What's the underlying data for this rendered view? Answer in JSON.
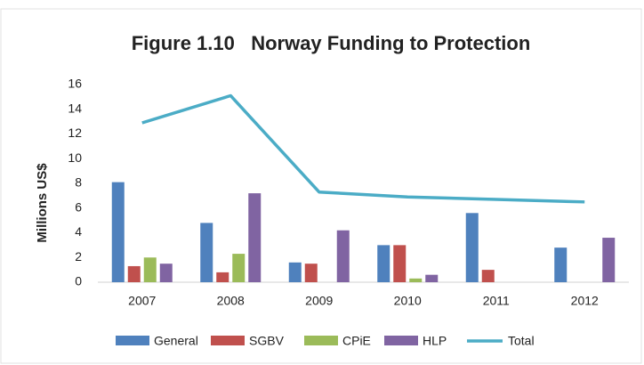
{
  "chart_data": {
    "type": "bar",
    "title": "Figure 1.10   Norway Funding to Protection",
    "y_label": "Millions US$",
    "categories": [
      "2007",
      "2008",
      "2009",
      "2010",
      "2011",
      "2012"
    ],
    "series": [
      {
        "name": "General",
        "color": "#4f81bd",
        "values": [
          8.1,
          4.8,
          1.6,
          3.0,
          5.6,
          2.8
        ]
      },
      {
        "name": "SGBV",
        "color": "#c0504d",
        "values": [
          1.3,
          0.8,
          1.5,
          3.0,
          1.0,
          0
        ]
      },
      {
        "name": "CPiE",
        "color": "#9bbb59",
        "values": [
          2.0,
          2.3,
          0,
          0.3,
          0,
          0
        ]
      },
      {
        "name": "HLP",
        "color": "#8064a2",
        "values": [
          1.5,
          7.2,
          4.2,
          0.6,
          0,
          3.6
        ]
      },
      {
        "name": "Total",
        "color": "#4bacc6",
        "type": "line",
        "values": [
          12.9,
          15.1,
          7.3,
          6.9,
          6.7,
          6.5
        ]
      }
    ],
    "ylim": [
      0,
      16
    ],
    "yticks": [
      0,
      2,
      4,
      6,
      8,
      10,
      12,
      14,
      16
    ],
    "grid": false,
    "legend": "bottom"
  }
}
